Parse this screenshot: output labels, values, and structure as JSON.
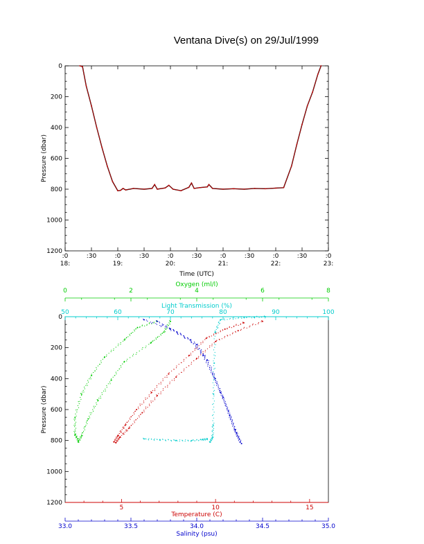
{
  "title": "Ventana Dive(s) on 29/Jul/1999",
  "chart_data": [
    {
      "type": "line",
      "xlabel": "Time (UTC)",
      "ylabel": "Pressure (dbar)",
      "xlim": [
        18.0,
        23.0
      ],
      "ylim": [
        1200,
        0
      ],
      "x_ticks": [
        {
          "x": 18.0,
          "l1": ":0",
          "l2": "18:"
        },
        {
          "x": 18.5,
          "l1": ":30",
          "l2": ""
        },
        {
          "x": 19.0,
          "l1": ":0",
          "l2": "19:"
        },
        {
          "x": 19.5,
          "l1": ":30",
          "l2": ""
        },
        {
          "x": 20.0,
          "l1": ":0",
          "l2": "20:"
        },
        {
          "x": 20.5,
          "l1": ":30",
          "l2": ""
        },
        {
          "x": 21.0,
          "l1": ":0",
          "l2": "21:"
        },
        {
          "x": 21.5,
          "l1": ":30",
          "l2": ""
        },
        {
          "x": 22.0,
          "l1": ":0",
          "l2": "22:"
        },
        {
          "x": 22.5,
          "l1": ":30",
          "l2": ""
        },
        {
          "x": 23.0,
          "l1": ":0",
          "l2": "23:"
        }
      ],
      "y_ticks": [
        "0",
        "200",
        "400",
        "600",
        "800",
        "1000",
        "1200"
      ],
      "series": [
        {
          "color": "#cc0000",
          "x": [
            18.28,
            18.33,
            18.4,
            18.5,
            18.6,
            18.7,
            18.8,
            18.9,
            19.0,
            19.05,
            19.1,
            19.15,
            19.3,
            19.5,
            19.65,
            19.7,
            19.75,
            19.9,
            19.97,
            20.05,
            20.2,
            20.35,
            20.4,
            20.45,
            20.55,
            20.7,
            20.73,
            20.8,
            21.0,
            21.2,
            21.4,
            21.6,
            21.8,
            22.0,
            22.15,
            22.3,
            22.4,
            22.5,
            22.6,
            22.7,
            22.8,
            22.86
          ],
          "y": [
            0,
            5,
            130,
            260,
            400,
            530,
            650,
            750,
            810,
            808,
            795,
            805,
            795,
            800,
            795,
            770,
            800,
            792,
            775,
            800,
            810,
            788,
            760,
            795,
            790,
            785,
            770,
            795,
            800,
            797,
            800,
            795,
            797,
            793,
            790,
            650,
            510,
            380,
            260,
            170,
            55,
            0
          ]
        }
      ]
    },
    {
      "type": "scatter",
      "ylabel": "Pressure (dbar)",
      "ylim": [
        1200,
        0
      ],
      "y_ticks": [
        "0",
        "200",
        "400",
        "600",
        "800",
        "1000",
        "1200"
      ],
      "axes": {
        "oxygen": {
          "label": "Oxygen (ml/l)",
          "range": [
            0,
            8
          ],
          "ticks": [
            "0",
            "2",
            "4",
            "6",
            "8"
          ],
          "color": "#00cc00"
        },
        "transmission": {
          "label": "Light Transmission (%)",
          "range": [
            50,
            100
          ],
          "ticks": [
            "50",
            "60",
            "70",
            "80",
            "90",
            "100"
          ],
          "color": "#00cccc"
        },
        "temperature": {
          "label": "Temperature (C)",
          "range": [
            2.0,
            16.0
          ],
          "ticks": [
            "5",
            "10",
            "15"
          ],
          "tick_values": [
            5,
            10,
            15
          ],
          "color": "#cc0000"
        },
        "salinity": {
          "label": "Salinity (psu)",
          "range": [
            33.0,
            35.0
          ],
          "ticks": [
            "33.0",
            "33.5",
            "34.0",
            "34.5",
            "35.0"
          ],
          "color": "#0000cc"
        }
      },
      "series": [
        {
          "name": "Oxygen (ml/l)",
          "axis": "oxygen",
          "color": "#00cc00",
          "x": [
            2.8,
            2.2,
            1.8,
            1.2,
            0.8,
            0.5,
            0.3,
            0.3,
            0.4
          ],
          "y": [
            30,
            70,
            150,
            260,
            380,
            500,
            650,
            760,
            800
          ]
        },
        {
          "name": "Oxygen (ml/l)",
          "axis": "oxygen",
          "color": "#00cc00",
          "x": [
            3.2,
            3.0,
            2.6,
            1.8,
            1.4,
            1.0,
            0.7,
            0.5,
            0.4
          ],
          "y": [
            30,
            100,
            170,
            290,
            410,
            540,
            660,
            770,
            810
          ]
        },
        {
          "name": "Light Transmission (%)",
          "axis": "transmission",
          "color": "#00cccc",
          "x": [
            88,
            84,
            79.5,
            78.5,
            78.3,
            78.2,
            78.1,
            78.0,
            77.5
          ],
          "y": [
            0,
            5,
            20,
            100,
            300,
            500,
            700,
            780,
            810
          ]
        },
        {
          "name": "Light Transmission (%)",
          "axis": "transmission",
          "color": "#00cccc",
          "x": [
            65,
            68,
            71,
            74,
            76,
            77
          ],
          "y": [
            790,
            795,
            800,
            800,
            795,
            790
          ]
        },
        {
          "name": "Temperature (C)",
          "axis": "temperature",
          "color": "#cc0000",
          "x": [
            11.5,
            10.5,
            9.5,
            8.6,
            7.5,
            6.6,
            5.8,
            5.2,
            4.8,
            4.6
          ],
          "y": [
            40,
            80,
            140,
            250,
            370,
            490,
            600,
            700,
            770,
            810
          ]
        },
        {
          "name": "Temperature (C)",
          "axis": "temperature",
          "color": "#cc0000",
          "x": [
            12.5,
            11.2,
            10.0,
            9.0,
            7.9,
            6.9,
            6.1,
            5.4,
            4.9,
            4.7
          ],
          "y": [
            30,
            90,
            160,
            270,
            390,
            510,
            620,
            720,
            780,
            815
          ]
        },
        {
          "name": "Salinity (psu)",
          "axis": "salinity",
          "color": "#0000cc",
          "x": [
            33.6,
            33.8,
            33.95,
            34.05,
            34.12,
            34.18,
            34.24,
            34.29,
            34.33
          ],
          "y": [
            20,
            80,
            150,
            250,
            370,
            490,
            610,
            730,
            810
          ]
        },
        {
          "name": "Salinity (psu)",
          "axis": "salinity",
          "color": "#0000cc",
          "x": [
            33.7,
            33.85,
            34.0,
            34.08,
            34.14,
            34.2,
            34.25,
            34.3,
            34.34
          ],
          "y": [
            30,
            100,
            180,
            280,
            400,
            520,
            640,
            750,
            820
          ]
        }
      ]
    }
  ]
}
